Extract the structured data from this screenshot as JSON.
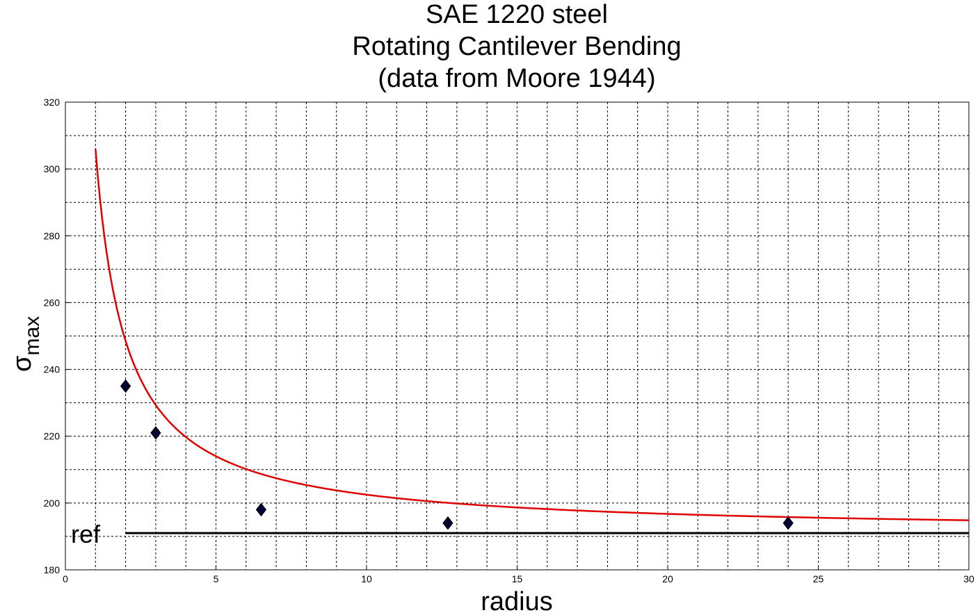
{
  "chart_data": {
    "type": "line",
    "title": [
      "SAE 1220 steel",
      "Rotating Cantilever Bending",
      "(data from Moore 1944)"
    ],
    "xlabel": "radius",
    "ylabel": "σ",
    "ylabel_subscript": "max",
    "xlim": [
      0,
      30
    ],
    "ylim": [
      180,
      320
    ],
    "x_ticks": [
      0,
      5,
      10,
      15,
      20,
      25,
      30
    ],
    "y_ticks": [
      180,
      200,
      220,
      240,
      260,
      280,
      300,
      320
    ],
    "x_grid_step": 1,
    "y_grid_step": 10,
    "grid": true,
    "ref_label": "ref",
    "series": [
      {
        "kind": "scatter",
        "marker": "diamond",
        "color": "#000033",
        "x": [
          2,
          3,
          6.5,
          12.7,
          24
        ],
        "y": [
          235,
          221,
          198,
          194,
          194
        ]
      },
      {
        "kind": "line",
        "color": "#e00000",
        "model": "y = 191 + 115 / r",
        "x_range": [
          1,
          30
        ]
      },
      {
        "kind": "hline",
        "color": "#000000",
        "y": 191,
        "x_range": [
          2,
          30
        ]
      }
    ]
  }
}
